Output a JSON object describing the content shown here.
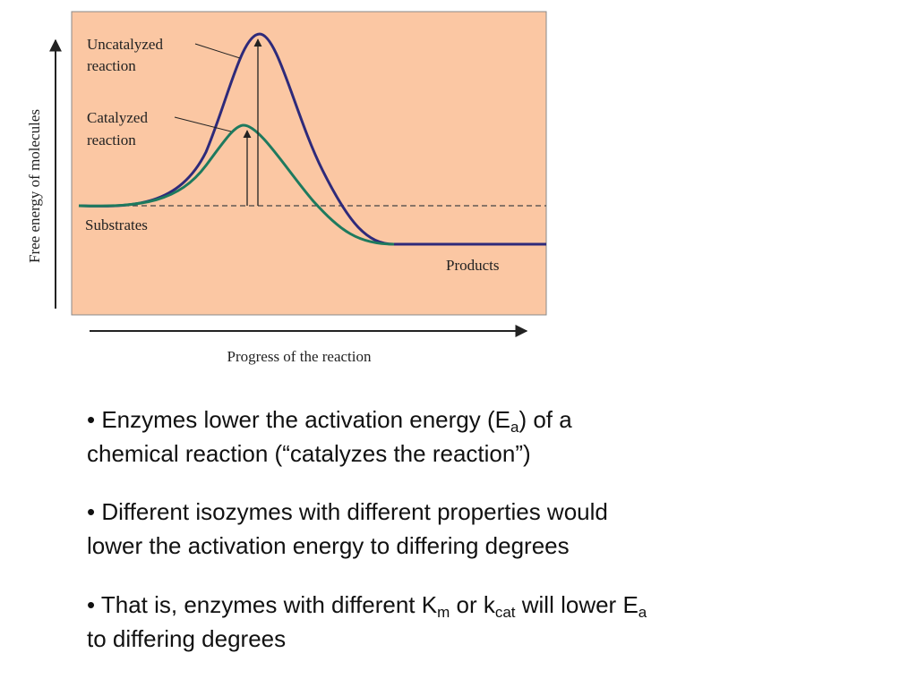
{
  "diagram": {
    "y_axis_label": "Free energy of molecules",
    "x_axis_label": "Progress of the reaction",
    "labels": {
      "uncatalyzed": [
        "Uncatalyzed",
        "reaction"
      ],
      "catalyzed": [
        "Catalyzed",
        "reaction"
      ],
      "substrates": "Substrates",
      "products": "Products"
    }
  },
  "bullets": [
    [
      "• Enzymes lower the activation energy (E",
      "a",
      ") of a",
      "chemical reaction (“catalyzes the reaction”)"
    ],
    [
      "• Different isozymes with different properties would",
      "lower the activation energy to differing degrees"
    ],
    [
      "• That is, enzymes with different K",
      "m",
      " or k",
      "cat",
      " will lower E",
      "a",
      "to differing degrees"
    ]
  ]
}
